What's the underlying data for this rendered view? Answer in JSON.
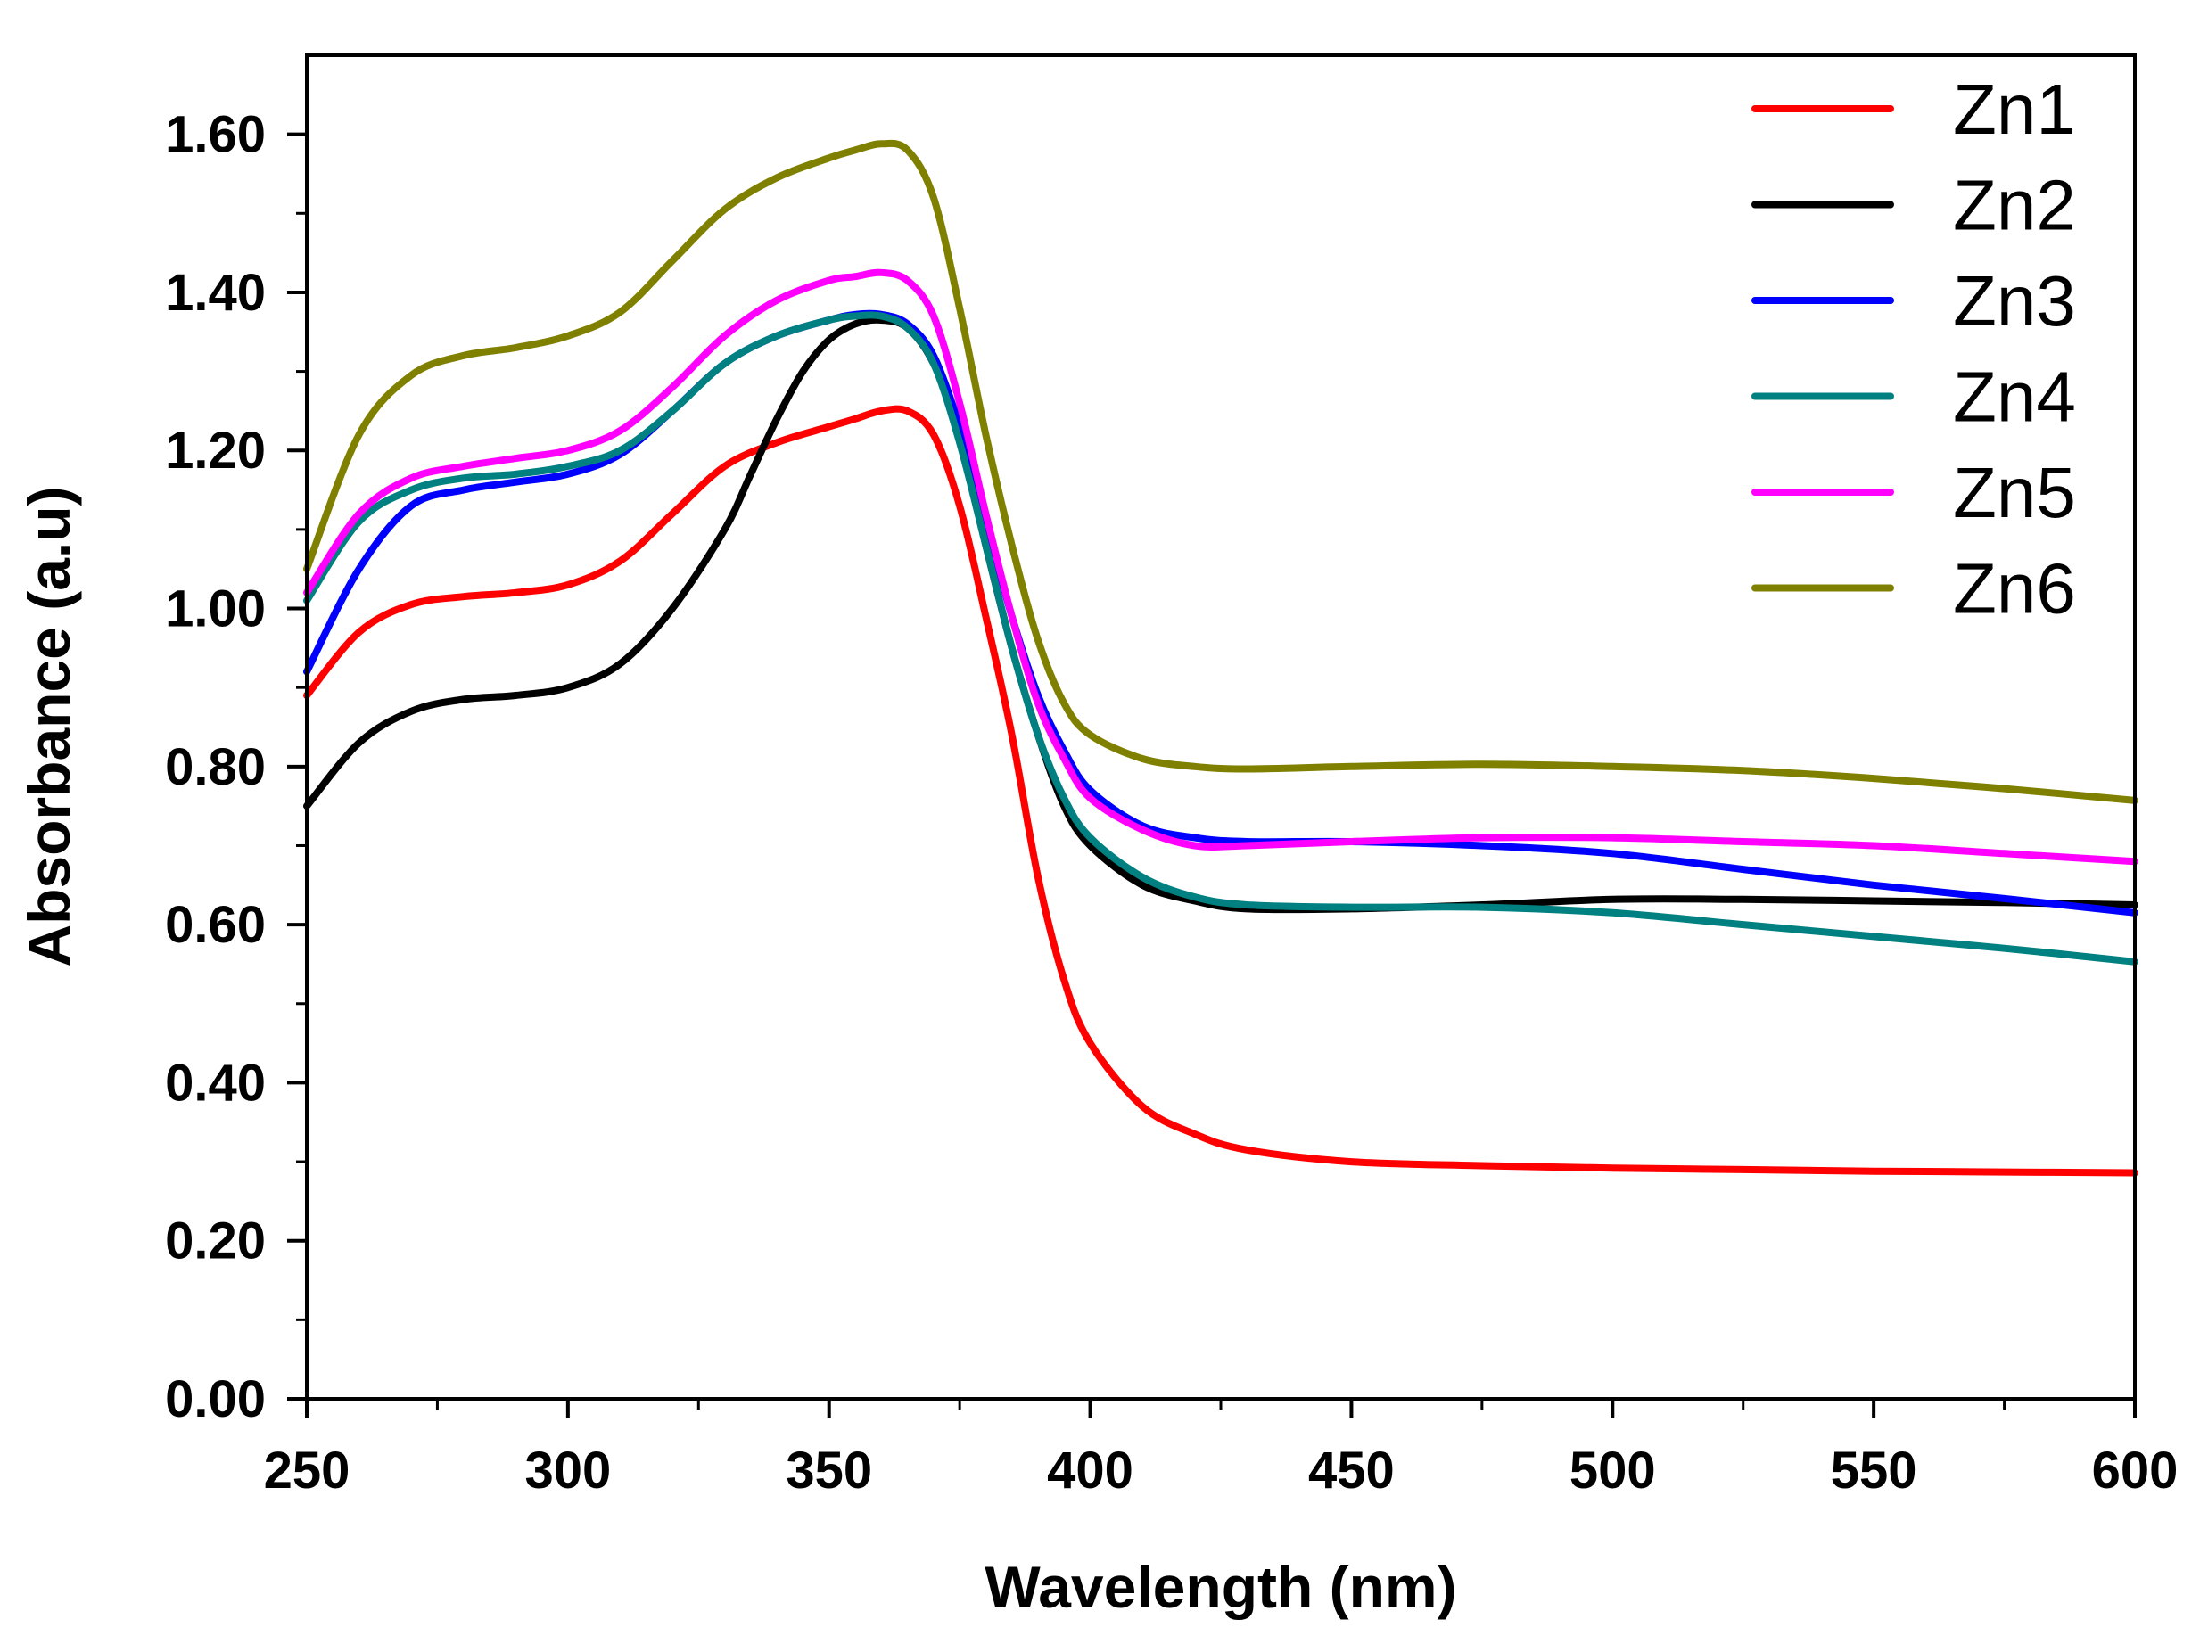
{
  "chart_data": {
    "type": "line",
    "title": "",
    "xlabel": "Wavelength (nm)",
    "ylabel": "Absorbance (a.u)",
    "xlim": [
      250,
      600
    ],
    "ylim": [
      0,
      1.7
    ],
    "x_ticks": [
      250,
      300,
      350,
      400,
      450,
      500,
      550,
      600
    ],
    "y_ticks": [
      0.0,
      0.2,
      0.4,
      0.6,
      0.8,
      1.0,
      1.2,
      1.4,
      1.6
    ],
    "x_tick_labels": [
      "250",
      "300",
      "350",
      "400",
      "450",
      "500",
      "550",
      "600"
    ],
    "y_tick_labels": [
      "0.00",
      "0.20",
      "0.40",
      "0.60",
      "0.80",
      "1.00",
      "1.20",
      "1.40",
      "1.60"
    ],
    "grid": false,
    "legend_position": "top-right",
    "series": [
      {
        "name": "Zn1",
        "color": "#ff0000",
        "points": [
          [
            250,
            0.89
          ],
          [
            260,
            0.97
          ],
          [
            270,
            1.005
          ],
          [
            280,
            1.015
          ],
          [
            290,
            1.02
          ],
          [
            300,
            1.03
          ],
          [
            310,
            1.06
          ],
          [
            320,
            1.12
          ],
          [
            330,
            1.18
          ],
          [
            340,
            1.21
          ],
          [
            350,
            1.23
          ],
          [
            355,
            1.24
          ],
          [
            360,
            1.25
          ],
          [
            365,
            1.25
          ],
          [
            370,
            1.22
          ],
          [
            375,
            1.13
          ],
          [
            380,
            0.99
          ],
          [
            385,
            0.84
          ],
          [
            390,
            0.66
          ],
          [
            395,
            0.53
          ],
          [
            400,
            0.45
          ],
          [
            410,
            0.37
          ],
          [
            420,
            0.335
          ],
          [
            430,
            0.315
          ],
          [
            450,
            0.3
          ],
          [
            475,
            0.295
          ],
          [
            500,
            0.292
          ],
          [
            525,
            0.29
          ],
          [
            550,
            0.288
          ],
          [
            575,
            0.287
          ],
          [
            600,
            0.286
          ]
        ]
      },
      {
        "name": "Zn2",
        "color": "#000000",
        "points": [
          [
            250,
            0.75
          ],
          [
            260,
            0.83
          ],
          [
            270,
            0.87
          ],
          [
            280,
            0.885
          ],
          [
            290,
            0.89
          ],
          [
            300,
            0.9
          ],
          [
            310,
            0.93
          ],
          [
            320,
            1.0
          ],
          [
            330,
            1.1
          ],
          [
            335,
            1.17
          ],
          [
            340,
            1.24
          ],
          [
            345,
            1.3
          ],
          [
            350,
            1.34
          ],
          [
            355,
            1.36
          ],
          [
            360,
            1.365
          ],
          [
            365,
            1.355
          ],
          [
            370,
            1.31
          ],
          [
            375,
            1.22
          ],
          [
            380,
            1.08
          ],
          [
            385,
            0.95
          ],
          [
            390,
            0.84
          ],
          [
            395,
            0.75
          ],
          [
            400,
            0.7
          ],
          [
            410,
            0.65
          ],
          [
            420,
            0.63
          ],
          [
            430,
            0.62
          ],
          [
            450,
            0.62
          ],
          [
            475,
            0.625
          ],
          [
            500,
            0.632
          ],
          [
            525,
            0.632
          ],
          [
            550,
            0.63
          ],
          [
            575,
            0.628
          ],
          [
            600,
            0.625
          ]
        ]
      },
      {
        "name": "Zn3",
        "color": "#0000ff",
        "points": [
          [
            250,
            0.92
          ],
          [
            260,
            1.05
          ],
          [
            270,
            1.13
          ],
          [
            280,
            1.15
          ],
          [
            290,
            1.16
          ],
          [
            300,
            1.17
          ],
          [
            310,
            1.195
          ],
          [
            320,
            1.25
          ],
          [
            330,
            1.31
          ],
          [
            340,
            1.345
          ],
          [
            350,
            1.365
          ],
          [
            355,
            1.372
          ],
          [
            360,
            1.372
          ],
          [
            365,
            1.36
          ],
          [
            370,
            1.32
          ],
          [
            375,
            1.23
          ],
          [
            380,
            1.11
          ],
          [
            385,
            0.99
          ],
          [
            390,
            0.89
          ],
          [
            395,
            0.82
          ],
          [
            400,
            0.77
          ],
          [
            410,
            0.725
          ],
          [
            420,
            0.71
          ],
          [
            430,
            0.705
          ],
          [
            450,
            0.705
          ],
          [
            475,
            0.7
          ],
          [
            500,
            0.69
          ],
          [
            525,
            0.67
          ],
          [
            550,
            0.65
          ],
          [
            575,
            0.633
          ],
          [
            600,
            0.615
          ]
        ]
      },
      {
        "name": "Zn4",
        "color": "#008080",
        "points": [
          [
            250,
            1.01
          ],
          [
            260,
            1.11
          ],
          [
            270,
            1.15
          ],
          [
            280,
            1.165
          ],
          [
            290,
            1.17
          ],
          [
            300,
            1.18
          ],
          [
            310,
            1.2
          ],
          [
            320,
            1.25
          ],
          [
            330,
            1.31
          ],
          [
            340,
            1.345
          ],
          [
            350,
            1.365
          ],
          [
            355,
            1.37
          ],
          [
            360,
            1.37
          ],
          [
            365,
            1.355
          ],
          [
            370,
            1.31
          ],
          [
            375,
            1.21
          ],
          [
            380,
            1.08
          ],
          [
            385,
            0.95
          ],
          [
            390,
            0.84
          ],
          [
            395,
            0.76
          ],
          [
            400,
            0.71
          ],
          [
            410,
            0.66
          ],
          [
            420,
            0.635
          ],
          [
            430,
            0.625
          ],
          [
            450,
            0.622
          ],
          [
            475,
            0.622
          ],
          [
            500,
            0.615
          ],
          [
            525,
            0.6
          ],
          [
            550,
            0.585
          ],
          [
            575,
            0.57
          ],
          [
            600,
            0.553
          ]
        ]
      },
      {
        "name": "Zn5",
        "color": "#ff00ff",
        "points": [
          [
            250,
            1.02
          ],
          [
            260,
            1.12
          ],
          [
            270,
            1.165
          ],
          [
            280,
            1.18
          ],
          [
            290,
            1.19
          ],
          [
            300,
            1.2
          ],
          [
            310,
            1.225
          ],
          [
            320,
            1.28
          ],
          [
            330,
            1.345
          ],
          [
            340,
            1.39
          ],
          [
            350,
            1.415
          ],
          [
            355,
            1.42
          ],
          [
            360,
            1.425
          ],
          [
            365,
            1.415
          ],
          [
            370,
            1.37
          ],
          [
            375,
            1.26
          ],
          [
            380,
            1.12
          ],
          [
            385,
            0.99
          ],
          [
            390,
            0.88
          ],
          [
            395,
            0.81
          ],
          [
            400,
            0.76
          ],
          [
            410,
            0.72
          ],
          [
            420,
            0.7
          ],
          [
            430,
            0.7
          ],
          [
            450,
            0.705
          ],
          [
            475,
            0.71
          ],
          [
            500,
            0.71
          ],
          [
            525,
            0.705
          ],
          [
            550,
            0.7
          ],
          [
            575,
            0.69
          ],
          [
            600,
            0.68
          ]
        ]
      },
      {
        "name": "Zn6",
        "color": "#808000",
        "points": [
          [
            250,
            1.05
          ],
          [
            260,
            1.22
          ],
          [
            270,
            1.295
          ],
          [
            280,
            1.32
          ],
          [
            290,
            1.33
          ],
          [
            300,
            1.345
          ],
          [
            310,
            1.375
          ],
          [
            320,
            1.44
          ],
          [
            330,
            1.505
          ],
          [
            340,
            1.545
          ],
          [
            350,
            1.57
          ],
          [
            355,
            1.58
          ],
          [
            360,
            1.588
          ],
          [
            365,
            1.58
          ],
          [
            370,
            1.52
          ],
          [
            375,
            1.38
          ],
          [
            380,
            1.22
          ],
          [
            385,
            1.08
          ],
          [
            390,
            0.96
          ],
          [
            395,
            0.88
          ],
          [
            400,
            0.84
          ],
          [
            410,
            0.81
          ],
          [
            420,
            0.8
          ],
          [
            430,
            0.797
          ],
          [
            450,
            0.8
          ],
          [
            475,
            0.803
          ],
          [
            500,
            0.8
          ],
          [
            525,
            0.795
          ],
          [
            550,
            0.785
          ],
          [
            575,
            0.772
          ],
          [
            600,
            0.757
          ]
        ]
      }
    ]
  }
}
